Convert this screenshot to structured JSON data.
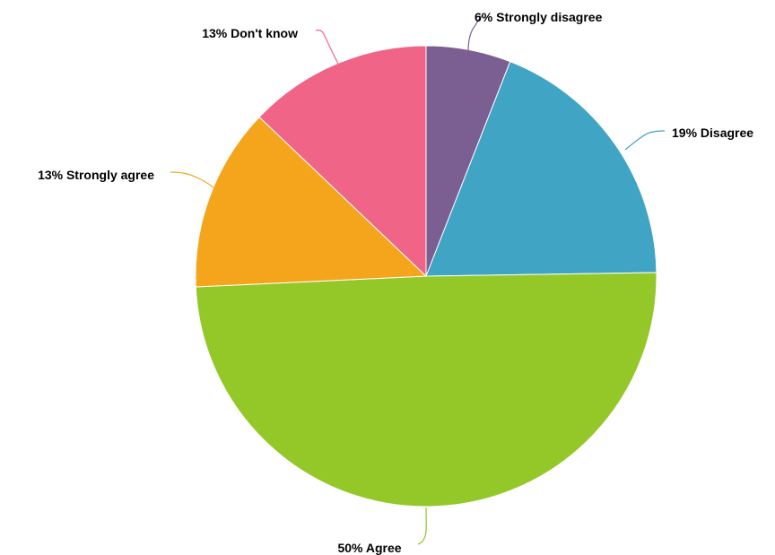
{
  "chart_data": {
    "type": "pie",
    "title": "",
    "slices": [
      {
        "name": "Strongly disagree",
        "value": 6,
        "label": "6% Strongly disagree",
        "color": "#7b5e92"
      },
      {
        "name": "Disagree",
        "value": 19,
        "label": "19% Disagree",
        "color": "#40a4c4"
      },
      {
        "name": "Agree",
        "value": 50,
        "label": "50% Agree",
        "color": "#94c829"
      },
      {
        "name": "Strongly agree",
        "value": 13,
        "label": "13% Strongly agree",
        "color": "#f5a51b"
      },
      {
        "name": "Don't know",
        "value": 13,
        "label": "13% Don't know",
        "color": "#f06587"
      }
    ]
  }
}
